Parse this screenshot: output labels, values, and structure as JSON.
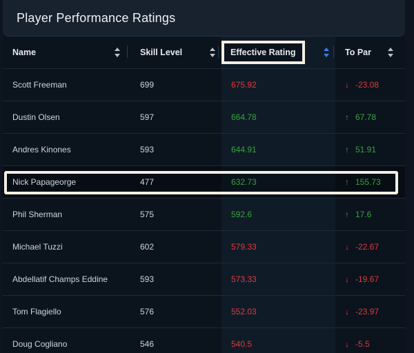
{
  "title": "Player Performance Ratings",
  "columns": {
    "name": "Name",
    "skill": "Skill Level",
    "effective": "Effective Rating",
    "topar": "To Par"
  },
  "colors": {
    "negative": "#e03a3a",
    "positive": "#35a63b",
    "sort_active": "#3c7fe0"
  },
  "rows": [
    {
      "name": "Scott Freeman",
      "skill": "699",
      "rating": "675.92",
      "topar": "-23.08",
      "dir": "down"
    },
    {
      "name": "Dustin Olsen",
      "skill": "597",
      "rating": "664.78",
      "topar": "67.78",
      "dir": "up"
    },
    {
      "name": "Andres Kinones",
      "skill": "593",
      "rating": "644.91",
      "topar": "51.91",
      "dir": "up"
    },
    {
      "name": "Nick Papageorge",
      "skill": "477",
      "rating": "632.73",
      "topar": "155.73",
      "dir": "up"
    },
    {
      "name": "Phil Sherman",
      "skill": "575",
      "rating": "592.6",
      "topar": "17.6",
      "dir": "up"
    },
    {
      "name": "Michael Tuzzi",
      "skill": "602",
      "rating": "579.33",
      "topar": "-22.67",
      "dir": "down"
    },
    {
      "name": "Abdellatif Champs Eddine",
      "skill": "593",
      "rating": "573.33",
      "topar": "-19.67",
      "dir": "down"
    },
    {
      "name": "Tom Flagiello",
      "skill": "576",
      "rating": "552.03",
      "topar": "-23.97",
      "dir": "down"
    },
    {
      "name": "Doug Cogliano",
      "skill": "546",
      "rating": "540.5",
      "topar": "-5.5",
      "dir": "down"
    }
  ]
}
